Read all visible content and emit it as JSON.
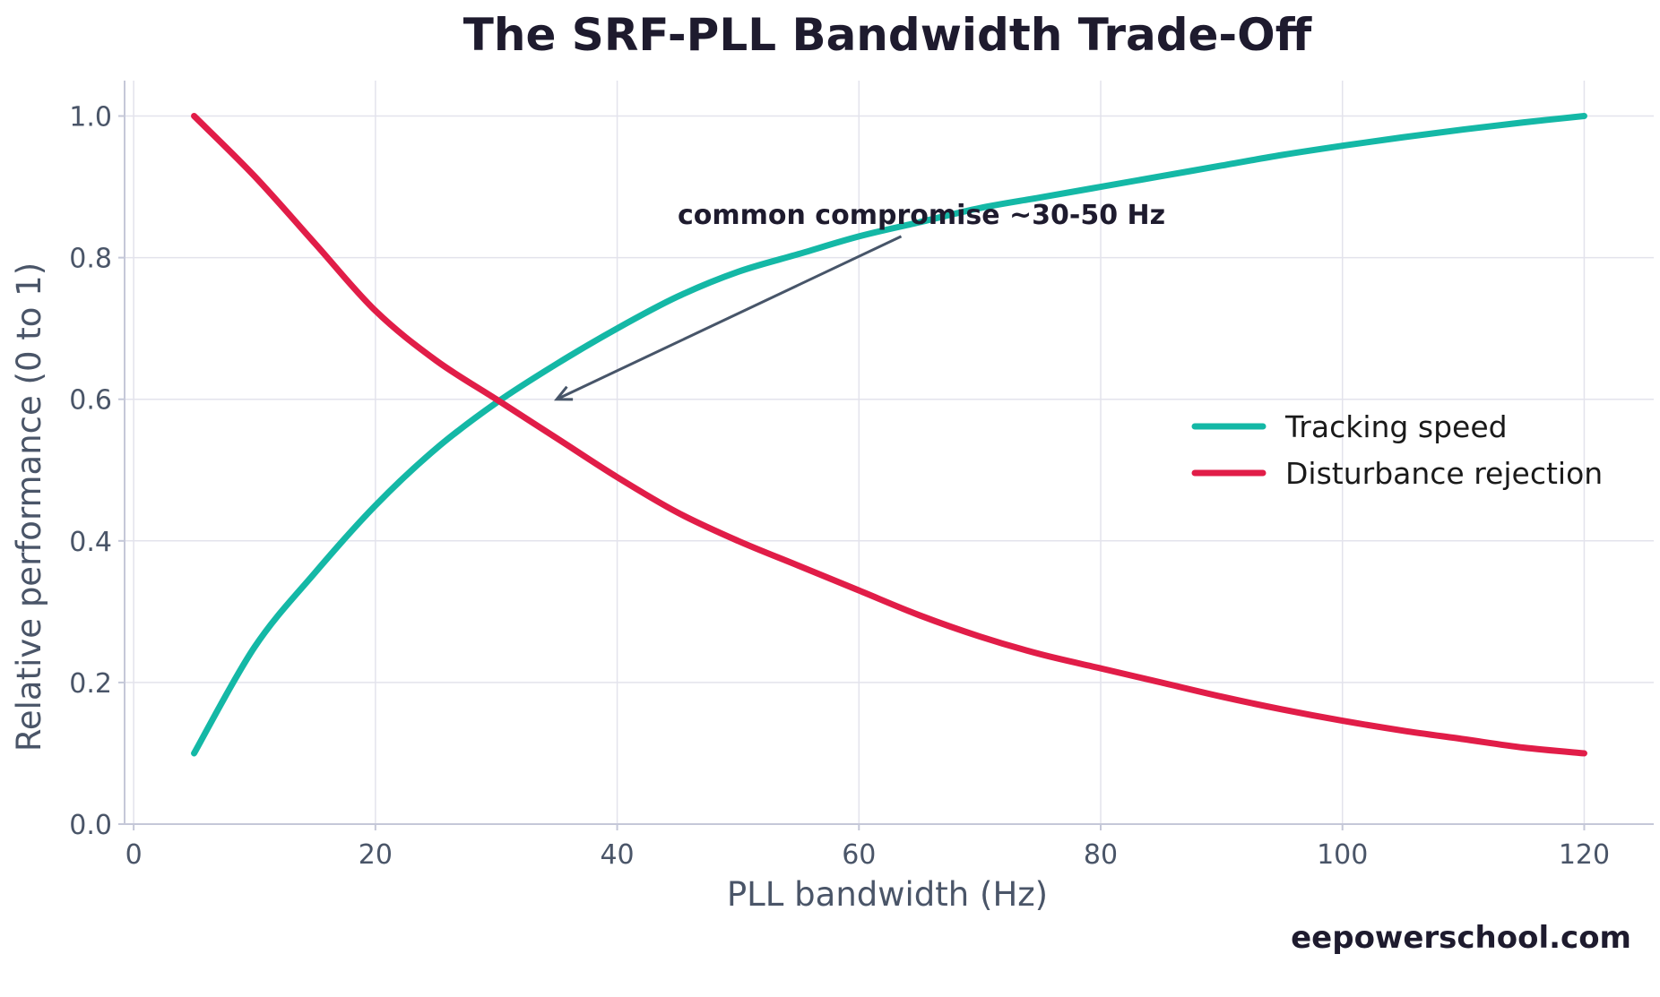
{
  "chart_data": {
    "type": "line",
    "title": "The SRF-PLL Bandwidth Trade-Off",
    "xlabel": "PLL bandwidth (Hz)",
    "ylabel": "Relative performance (0 to 1)",
    "xlim": [
      -0.75,
      125.75
    ],
    "ylim": [
      0.0,
      1.05
    ],
    "xticks": [
      0,
      20,
      40,
      60,
      80,
      100,
      120
    ],
    "yticks": [
      0.0,
      0.2,
      0.4,
      0.6,
      0.8,
      1.0
    ],
    "xtick_labels": [
      "0",
      "20",
      "40",
      "60",
      "80",
      "100",
      "120"
    ],
    "ytick_labels": [
      "0.0",
      "0.2",
      "0.4",
      "0.6",
      "0.8",
      "1.0"
    ],
    "grid": true,
    "legend_position": "center-right",
    "x": [
      5,
      10,
      15,
      20,
      25,
      30,
      35,
      40,
      45,
      50,
      55,
      60,
      65,
      70,
      75,
      80,
      85,
      90,
      95,
      100,
      105,
      110,
      115,
      120
    ],
    "series": [
      {
        "name": "Tracking speed",
        "color": "#14b8a6",
        "values": [
          0.1,
          0.25,
          0.355,
          0.45,
          0.53,
          0.595,
          0.65,
          0.7,
          0.745,
          0.78,
          0.805,
          0.83,
          0.85,
          0.87,
          0.885,
          0.9,
          0.915,
          0.93,
          0.945,
          0.958,
          0.97,
          0.981,
          0.991,
          1.0
        ]
      },
      {
        "name": "Disturbance rejection",
        "color": "#e11d48",
        "values": [
          1.0,
          0.915,
          0.82,
          0.725,
          0.655,
          0.6,
          0.545,
          0.49,
          0.44,
          0.4,
          0.365,
          0.33,
          0.295,
          0.265,
          0.24,
          0.22,
          0.2,
          0.18,
          0.162,
          0.146,
          0.132,
          0.12,
          0.108,
          0.1
        ]
      }
    ],
    "annotation": {
      "text": "common compromise ~30-50 Hz",
      "text_x": 45,
      "text_y": 0.86,
      "arrow_from_x": 63.5,
      "arrow_from_y": 0.83,
      "arrow_to_x": 35,
      "arrow_to_y": 0.6,
      "color": "#475569"
    }
  },
  "watermark": "eepowerschool.com"
}
